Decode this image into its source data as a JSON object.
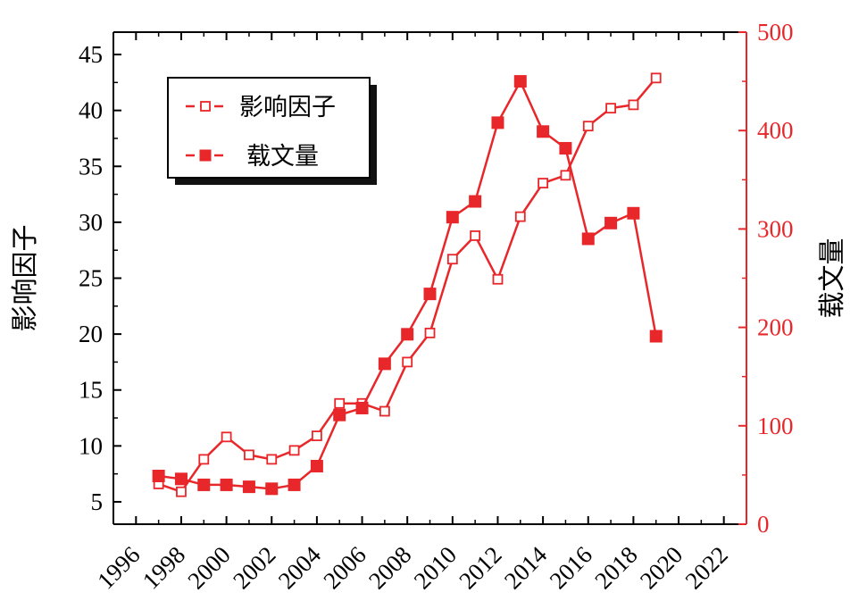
{
  "colors": {
    "series": "#e8272a",
    "axis": "#000000",
    "right_axis": "#e8272a",
    "legend_shadow": "#111111"
  },
  "chart_data": {
    "type": "line",
    "title": "",
    "xlabel": "",
    "x_ticks": [
      "1996",
      "1998",
      "2000",
      "2002",
      "2004",
      "2006",
      "2008",
      "2010",
      "2012",
      "2014",
      "2016",
      "2018",
      "2020",
      "2022"
    ],
    "xlim": [
      1995,
      2023
    ],
    "left_axis": {
      "label": "影响因子",
      "ylim": [
        3,
        47
      ],
      "ticks": [
        5,
        10,
        15,
        20,
        25,
        30,
        35,
        40,
        45
      ]
    },
    "right_axis": {
      "label": "载文量",
      "ylim": [
        0,
        500
      ],
      "ticks": [
        0,
        100,
        200,
        300,
        400,
        500
      ]
    },
    "legend": {
      "position": "top-left"
    },
    "series": [
      {
        "name": "影响因子",
        "axis": "left",
        "marker": "open-square",
        "x": [
          1997,
          1998,
          1999,
          2000,
          2001,
          2002,
          2003,
          2004,
          2005,
          2006,
          2007,
          2008,
          2009,
          2010,
          2011,
          2012,
          2013,
          2014,
          2015,
          2016,
          2017,
          2018,
          2019
        ],
        "values": [
          6.6,
          5.9,
          8.8,
          10.8,
          9.2,
          8.8,
          9.6,
          10.9,
          13.8,
          13.8,
          13.1,
          17.5,
          20.1,
          26.7,
          28.8,
          24.9,
          30.5,
          33.5,
          34.2,
          38.6,
          40.2,
          40.5,
          42.9
        ]
      },
      {
        "name": "载文量",
        "axis": "right",
        "marker": "filled-square",
        "x": [
          1997,
          1998,
          1999,
          2000,
          2001,
          2002,
          2003,
          2004,
          2005,
          2006,
          2007,
          2008,
          2009,
          2010,
          2011,
          2012,
          2013,
          2014,
          2015,
          2016,
          2017,
          2018,
          2019
        ],
        "values": [
          49,
          46,
          40,
          40,
          38,
          36,
          40,
          59,
          111,
          118,
          163,
          193,
          234,
          312,
          328,
          408,
          450,
          399,
          382,
          290,
          306,
          316,
          191
        ]
      }
    ]
  }
}
